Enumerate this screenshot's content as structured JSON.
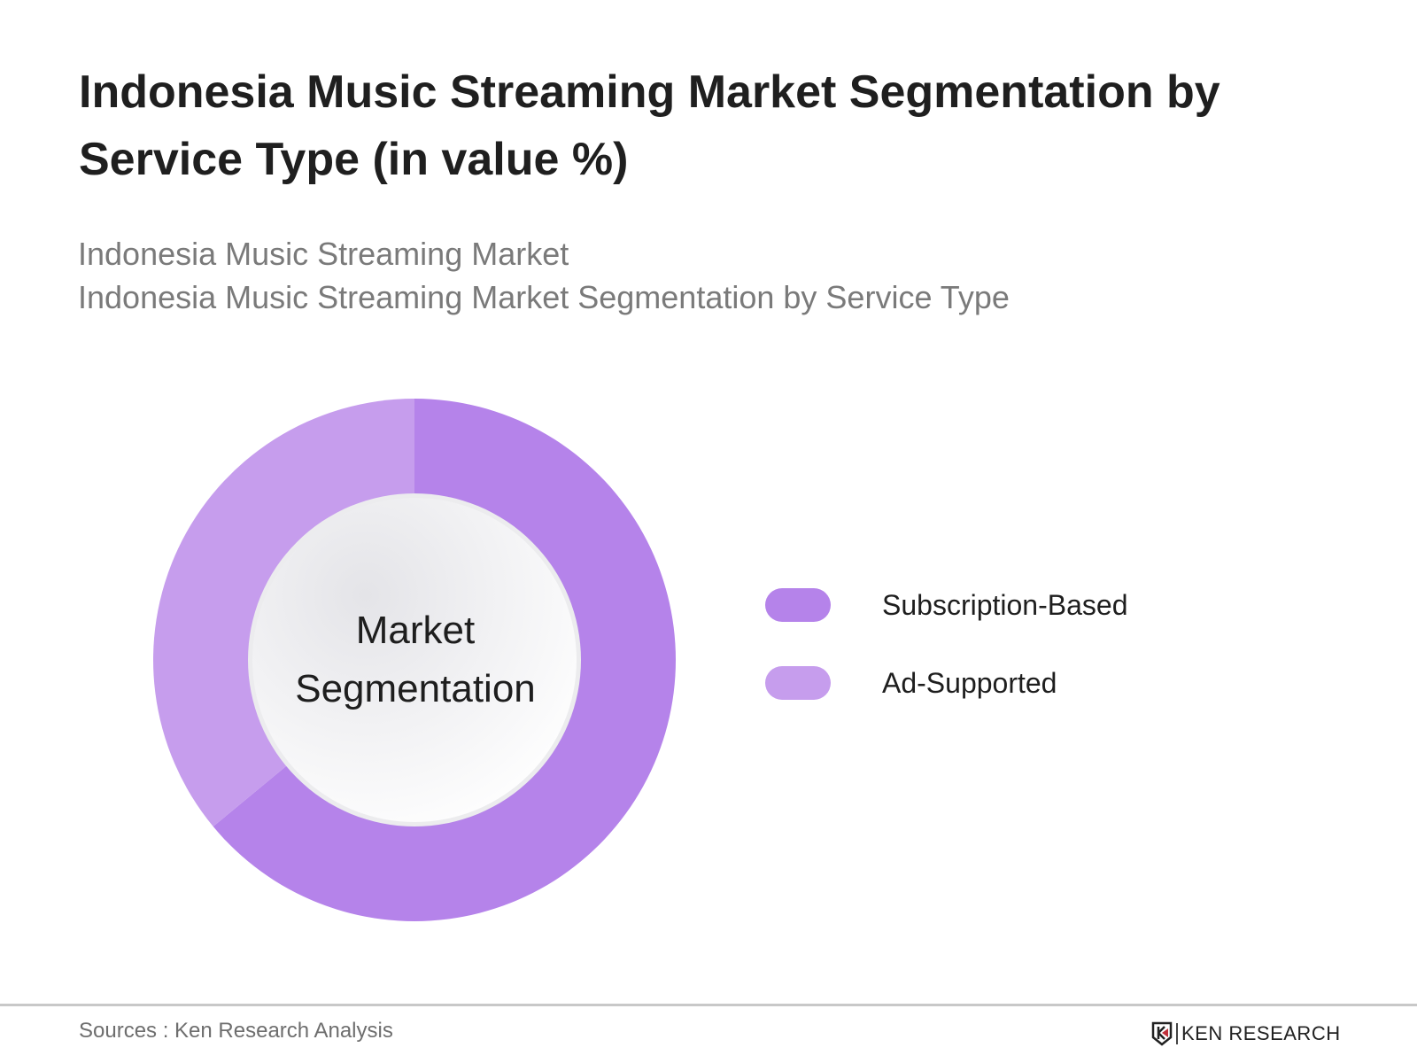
{
  "header": {
    "title": "Indonesia Music Streaming Market Segmentation by Service Type (in value %)",
    "subtitle_line1": "Indonesia Music Streaming Market",
    "subtitle_line2": "Indonesia Music Streaming Market Segmentation by Service Type"
  },
  "chart": {
    "center_label_line1": "Market",
    "center_label_line2": "Segmentation"
  },
  "legend": {
    "items": [
      {
        "label": "Subscription-Based",
        "color": "#b583ea"
      },
      {
        "label": "Ad-Supported",
        "color": "#c69ded"
      }
    ]
  },
  "footer": {
    "sources": "Sources : Ken Research Analysis",
    "brand": "KEN RESEARCH"
  },
  "chart_data": {
    "type": "pie",
    "variant": "donut",
    "title": "Indonesia Music Streaming Market Segmentation by Service Type (in value %)",
    "subtitle": "Indonesia Music Streaming Market / Indonesia Music Streaming Market Segmentation by Service Type",
    "center_text": "Market Segmentation",
    "categories": [
      "Subscription-Based",
      "Ad-Supported"
    ],
    "values": [
      64,
      36
    ],
    "unit": "%",
    "colors": [
      "#b583ea",
      "#c69ded"
    ],
    "start_angle_deg": 0,
    "direction": "clockwise",
    "legend_position": "right",
    "data_labels_shown": false
  }
}
